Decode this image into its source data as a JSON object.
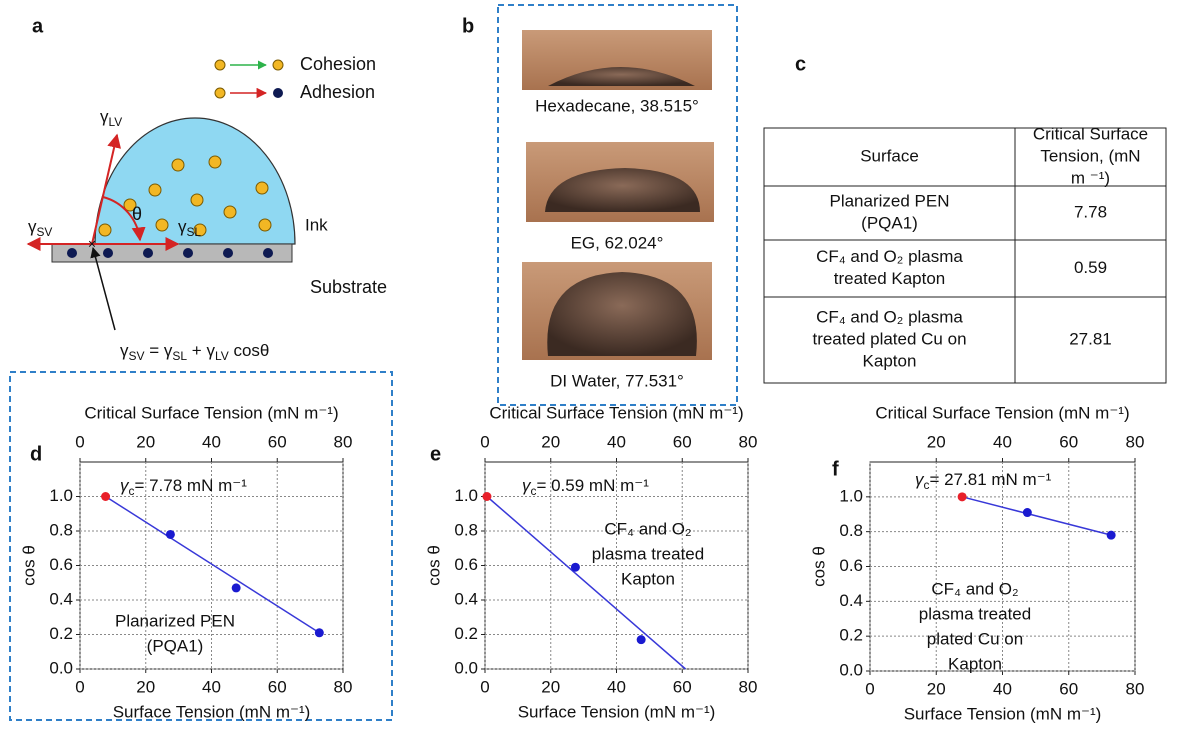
{
  "panel_a": {
    "letter": "a",
    "legend": [
      {
        "label": "Cohesion",
        "color": "#2db34a"
      },
      {
        "label": "Adhesion",
        "color": "#e0262b"
      }
    ],
    "gamma_lv": {
      "symbol": "γ",
      "sub": "LV"
    },
    "gamma_sv": {
      "symbol": "γ",
      "sub": "SV"
    },
    "gamma_sl": {
      "symbol": "γ",
      "sub": "SL"
    },
    "theta": "θ",
    "ink": "Ink",
    "substrate": "Substrate",
    "equation": [
      "γ",
      "SV",
      " = γ",
      "SL",
      " + γ",
      "LV",
      " cosθ"
    ]
  },
  "panel_b": {
    "letter": "b",
    "captions": [
      "Hexadecane, 38.515°",
      "EG, 62.024°",
      "DI Water, 77.531°"
    ]
  },
  "panel_c": {
    "letter": "c",
    "table": {
      "header": [
        [
          "Surface"
        ],
        [
          "Critical Surface",
          "Tension, (mN",
          "m ⁻¹)"
        ]
      ],
      "rows": [
        [
          [
            "Planarized PEN",
            "(PQA1)"
          ],
          7.78
        ],
        [
          [
            "CF₄ and O₂ plasma",
            "treated Kapton"
          ],
          0.59
        ],
        [
          [
            "CF₄ and O₂ plasma",
            "treated plated Cu on",
            "Kapton"
          ],
          27.81
        ]
      ]
    }
  },
  "chart_data": [
    {
      "type": "scatter",
      "panel": "d",
      "xlabel": "Surface Tension (mN m⁻¹)",
      "x2label": "Critical Surface Tension (mN m⁻¹)",
      "ylabel": "cos θ",
      "annotation": {
        "symbol": "γ",
        "sub": "c",
        "text": "= 7.78 mN m⁻¹"
      },
      "note": [
        "Planarized PEN",
        "(PQA1)"
      ],
      "xlim": [
        0,
        80
      ],
      "xticks": [
        0,
        20,
        40,
        60,
        80
      ],
      "x2ticks": [
        0,
        20,
        40,
        60,
        80
      ],
      "ylim": [
        0,
        1.2
      ],
      "yticks": [
        {
          "value": 0,
          "label": "0.0"
        },
        {
          "value": 0.2,
          "label": "0.2"
        },
        {
          "value": 0.4,
          "label": "0.4"
        },
        {
          "value": 0.6,
          "label": "0.6"
        },
        {
          "value": 0.8,
          "label": "0.8"
        },
        {
          "value": 1,
          "label": "1.0"
        }
      ],
      "grid": true,
      "series": [
        {
          "mode": "line",
          "color": "#3838d8",
          "x": [
            7.78,
            72.8
          ],
          "values": [
            1.0,
            0.21
          ]
        },
        {
          "mode": "markers",
          "color": "#e8202a",
          "x": [
            7.78
          ],
          "values": [
            1.0
          ]
        },
        {
          "mode": "markers",
          "color": "#1a1ad0",
          "x": [
            27.5,
            47.5,
            72.8
          ],
          "values": [
            0.78,
            0.47,
            0.21
          ]
        }
      ]
    },
    {
      "type": "scatter",
      "panel": "e",
      "xlabel": "Surface Tension (mN m⁻¹)",
      "x2label": "Critical Surface Tension (mN m⁻¹)",
      "ylabel": "cos θ",
      "annotation": {
        "symbol": "γ",
        "sub": "c",
        "text": "= 0.59 mN m⁻¹"
      },
      "note": [
        "CF₄ and O₂",
        "plasma treated",
        "Kapton"
      ],
      "xlim": [
        0,
        80
      ],
      "xticks": [
        0,
        20,
        40,
        60,
        80
      ],
      "x2ticks": [
        0,
        20,
        40,
        60,
        80
      ],
      "ylim": [
        0,
        1.2
      ],
      "yticks": [
        {
          "value": 0,
          "label": "0.0"
        },
        {
          "value": 0.2,
          "label": "0.2"
        },
        {
          "value": 0.4,
          "label": "0.4"
        },
        {
          "value": 0.6,
          "label": "0.6"
        },
        {
          "value": 0.8,
          "label": "0.8"
        },
        {
          "value": 1,
          "label": "1.0"
        }
      ],
      "grid": true,
      "series": [
        {
          "mode": "line",
          "color": "#3838d8",
          "x": [
            0.59,
            61
          ],
          "values": [
            1.0,
            0
          ]
        },
        {
          "mode": "markers",
          "color": "#e8202a",
          "x": [
            0.59
          ],
          "values": [
            1.0
          ]
        },
        {
          "mode": "markers",
          "color": "#1a1ad0",
          "x": [
            27.5,
            47.5
          ],
          "values": [
            0.59,
            0.17
          ]
        }
      ]
    },
    {
      "type": "scatter",
      "panel": "f",
      "xlabel": "Surface Tension (mN m⁻¹)",
      "x2label": "Critical Surface Tension (mN m⁻¹)",
      "ylabel": "cos θ",
      "annotation": {
        "symbol": "γ",
        "sub": "c",
        "text": "= 27.81 mN m⁻¹"
      },
      "note": [
        "CF₄ and O₂",
        "plasma treated",
        "plated Cu on",
        "Kapton"
      ],
      "xlim": [
        0,
        80
      ],
      "xticks": [
        0,
        20,
        40,
        60,
        80
      ],
      "x2ticks": [
        20,
        40,
        60,
        80
      ],
      "ylim": [
        0,
        1.2
      ],
      "yticks": [
        {
          "value": 0,
          "label": "0.0"
        },
        {
          "value": 0.2,
          "label": "0.2"
        },
        {
          "value": 0.4,
          "label": "0.4"
        },
        {
          "value": 0.6,
          "label": "0.6"
        },
        {
          "value": 0.8,
          "label": "0.8"
        },
        {
          "value": 1,
          "label": "1.0"
        }
      ],
      "grid": true,
      "series": [
        {
          "mode": "line",
          "color": "#3838d8",
          "x": [
            27.81,
            72.8
          ],
          "values": [
            1.0,
            0.78
          ]
        },
        {
          "mode": "markers",
          "color": "#e8202a",
          "x": [
            27.81
          ],
          "values": [
            1.0
          ]
        },
        {
          "mode": "markers",
          "color": "#1a1ad0",
          "x": [
            47.5,
            72.8
          ],
          "values": [
            0.91,
            0.78
          ]
        }
      ]
    }
  ]
}
